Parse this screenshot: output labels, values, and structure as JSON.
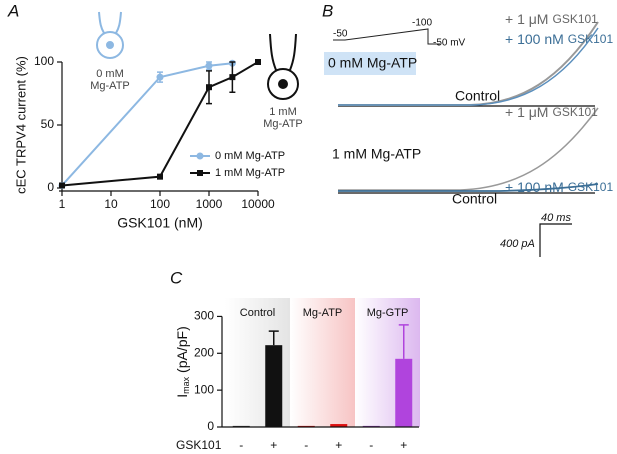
{
  "chart_data": [
    {
      "type": "line",
      "panel_label": "A",
      "xlabel": "GSK101 (nM)",
      "ylabel": "cEC TRPV4 current (%)",
      "log_x": true,
      "xlim": [
        1,
        10000
      ],
      "xticks": [
        1,
        10,
        100,
        1000,
        10000
      ],
      "ylim": [
        0,
        100
      ],
      "yticks": [
        0,
        50,
        100
      ],
      "annotations": [
        [
          "0 mM",
          "Mg-ATP"
        ],
        [
          "1 mM",
          "Mg-ATP"
        ]
      ],
      "series": [
        {
          "name": "0 mM Mg-ATP",
          "color": "#8db8e2",
          "marker": "circle",
          "x": [
            1,
            100,
            1000,
            3000
          ],
          "values": [
            2,
            88,
            97,
            99
          ],
          "errors": [
            null,
            4,
            3,
            null
          ]
        },
        {
          "name": "1 mM Mg-ATP",
          "color": "#111111",
          "marker": "square",
          "x": [
            1,
            100,
            1000,
            3000,
            10000
          ],
          "values": [
            2,
            9,
            80,
            88,
            100
          ],
          "errors": [
            null,
            null,
            13,
            12,
            null
          ]
        }
      ]
    },
    {
      "type": "traces",
      "panel_label": "B",
      "protocol": {
        "start": "-50",
        "peak": "-100",
        "end": "-50 mV"
      },
      "conditions": [
        {
          "name": "0 mM Mg-ATP",
          "labels": [
            {
              "prefix": "+ 1 μM",
              "drug": "GSK101",
              "color": "#666666"
            },
            {
              "prefix": "+ 100 nM",
              "drug": "GSK101",
              "color": "#3b6e96"
            }
          ],
          "control": "Control"
        },
        {
          "name": "1 mM Mg-ATP",
          "labels": [
            {
              "prefix": "+ 1 μM",
              "drug": "GSK101",
              "color": "#666666"
            },
            {
              "prefix": "+ 100 nM",
              "drug": "GSK101",
              "color": "#3b6e96"
            }
          ],
          "control": "Control"
        }
      ],
      "scale_bar": {
        "time": "40 ms",
        "current": "400 pA"
      }
    },
    {
      "type": "bar",
      "panel_label": "C",
      "ylabel": {
        "main": "I",
        "sub": "max",
        "rest": " (pA/pF)"
      },
      "groups": [
        "Control",
        "Mg-ATP",
        "Mg-GTP"
      ],
      "group_colors": [
        "#e6e6e6",
        "#f9c9c9",
        "#e0c0f0"
      ],
      "row_label": "GSK101",
      "categories": [
        "-",
        "+",
        "-",
        "+",
        "-",
        "+"
      ],
      "values": [
        3,
        222,
        3,
        8,
        3,
        185
      ],
      "errors": [
        null,
        38,
        null,
        null,
        null,
        92
      ],
      "colors": [
        "#333333",
        "#111111",
        "#cc1111",
        "#dd1111",
        "#8a3ab0",
        "#b044dd"
      ],
      "ylim": [
        0,
        350
      ],
      "yticks": [
        0,
        100,
        200,
        300
      ]
    }
  ]
}
